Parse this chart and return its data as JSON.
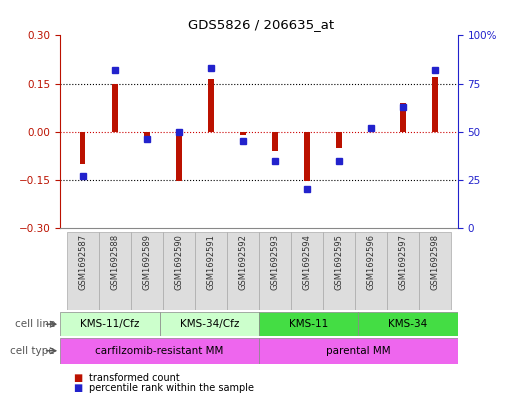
{
  "title": "GDS5826 / 206635_at",
  "samples": [
    "GSM1692587",
    "GSM1692588",
    "GSM1692589",
    "GSM1692590",
    "GSM1692591",
    "GSM1692592",
    "GSM1692593",
    "GSM1692594",
    "GSM1692595",
    "GSM1692596",
    "GSM1692597",
    "GSM1692598"
  ],
  "transformed_count": [
    -0.1,
    0.15,
    -0.02,
    -0.155,
    0.165,
    -0.01,
    -0.06,
    -0.155,
    -0.05,
    0.01,
    0.09,
    0.17
  ],
  "percentile_rank": [
    27,
    82,
    46,
    50,
    83,
    45,
    35,
    20,
    35,
    52,
    63,
    82
  ],
  "ylim_left": [
    -0.3,
    0.3
  ],
  "ylim_right": [
    0,
    100
  ],
  "yticks_left": [
    -0.3,
    -0.15,
    0.0,
    0.15,
    0.3
  ],
  "yticks_right": [
    0,
    25,
    50,
    75,
    100
  ],
  "cell_lines": [
    {
      "label": "KMS-11/Cfz",
      "start": 0,
      "end": 3,
      "color": "#ccffcc"
    },
    {
      "label": "KMS-34/Cfz",
      "start": 3,
      "end": 6,
      "color": "#ccffcc"
    },
    {
      "label": "KMS-11",
      "start": 6,
      "end": 9,
      "color": "#44dd44"
    },
    {
      "label": "KMS-34",
      "start": 9,
      "end": 12,
      "color": "#44dd44"
    }
  ],
  "cell_types": [
    {
      "label": "carfilzomib-resistant MM",
      "start": 0,
      "end": 6,
      "color": "#ee66ee"
    },
    {
      "label": "parental MM",
      "start": 6,
      "end": 12,
      "color": "#ee66ee"
    }
  ],
  "bar_color_red": "#bb1100",
  "bar_color_blue": "#2222cc",
  "legend_items": [
    {
      "color": "#bb1100",
      "label": "transformed count"
    },
    {
      "color": "#2222cc",
      "label": "percentile rank within the sample"
    }
  ],
  "bg_color": "#ffffff"
}
